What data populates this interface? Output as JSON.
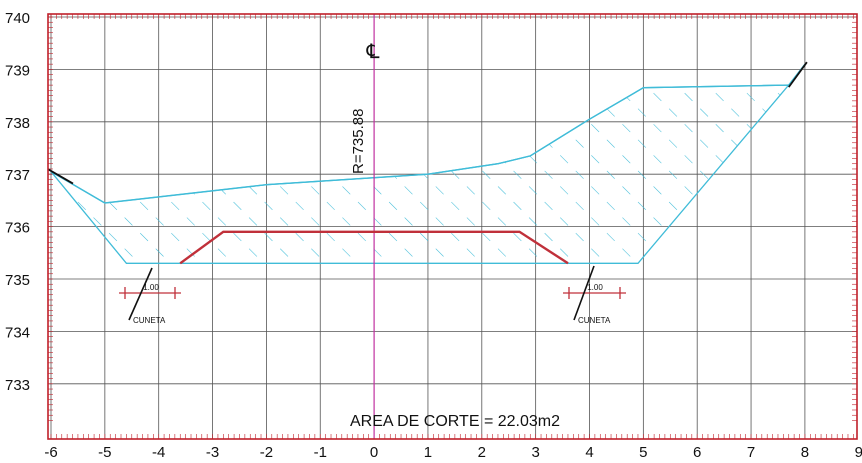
{
  "drawing": {
    "x_ticks": [
      "-6",
      "-5",
      "-4",
      "-3",
      "-2",
      "-1",
      "0",
      "1",
      "2",
      "3",
      "4",
      "5",
      "6",
      "7",
      "8",
      "9"
    ],
    "y_ticks": [
      "740",
      "739",
      "738",
      "737",
      "736",
      "735",
      "734",
      "733"
    ],
    "centerline_symbol": "℄",
    "grade_label": "R=735.88",
    "area_label": "AREA DE CORTE = 22.03m2",
    "left_ditch": {
      "label": "CUNETA",
      "dimension": "1.00"
    },
    "right_ditch": {
      "label": "CUNETA",
      "dimension": "1.00"
    },
    "colors": {
      "frame": "#c0202a",
      "centerline": "#c030a0",
      "terrain": "#40bcd8",
      "hatch": "#40bcd8",
      "subgrade": "#c0303a",
      "ink": "#111111",
      "grid": "#555555"
    }
  },
  "chart_data": {
    "type": "cross-section",
    "x_range": [
      -6,
      9
    ],
    "y_range": [
      732.2,
      740
    ],
    "grid": true,
    "centerline_x": 0,
    "ground_line": [
      [
        -6.0,
        737.05
      ],
      [
        -5.0,
        736.45
      ],
      [
        -2.0,
        736.8
      ],
      [
        1.0,
        737.0
      ],
      [
        2.3,
        737.2
      ],
      [
        2.9,
        737.35
      ],
      [
        4.0,
        738.05
      ],
      [
        5.0,
        738.65
      ],
      [
        7.7,
        738.7
      ],
      [
        8.0,
        739.1
      ]
    ],
    "cut_section": [
      [
        -6.0,
        737.05
      ],
      [
        -5.0,
        736.45
      ],
      [
        -2.0,
        736.8
      ],
      [
        1.0,
        737.0
      ],
      [
        2.3,
        737.2
      ],
      [
        2.9,
        737.35
      ],
      [
        4.0,
        738.05
      ],
      [
        5.0,
        738.65
      ],
      [
        7.7,
        738.7
      ],
      [
        4.9,
        735.3
      ],
      [
        -4.6,
        735.3
      ]
    ],
    "subgrade_line": [
      [
        -3.6,
        735.3
      ],
      [
        -2.8,
        735.9
      ],
      [
        2.7,
        735.9
      ],
      [
        3.6,
        735.3
      ]
    ],
    "grade_elevation": 735.88,
    "area_of_cut_m2": 22.03
  }
}
